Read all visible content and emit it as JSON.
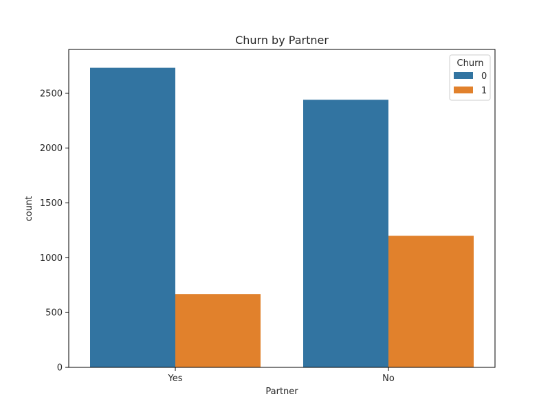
{
  "chart_data": {
    "type": "bar",
    "title": "Churn by Partner",
    "xlabel": "Partner",
    "ylabel": "count",
    "categories": [
      "Yes",
      "No"
    ],
    "series": [
      {
        "name": "0",
        "values": [
          2733,
          2441
        ],
        "color": "#3274a1"
      },
      {
        "name": "1",
        "values": [
          669,
          1200
        ],
        "color": "#e1812c"
      }
    ],
    "ylim": [
      0,
      2900
    ],
    "yticks": [
      0,
      500,
      1000,
      1500,
      2000,
      2500
    ],
    "legend": {
      "title": "Churn",
      "placement": "top-right"
    },
    "grid": false
  }
}
